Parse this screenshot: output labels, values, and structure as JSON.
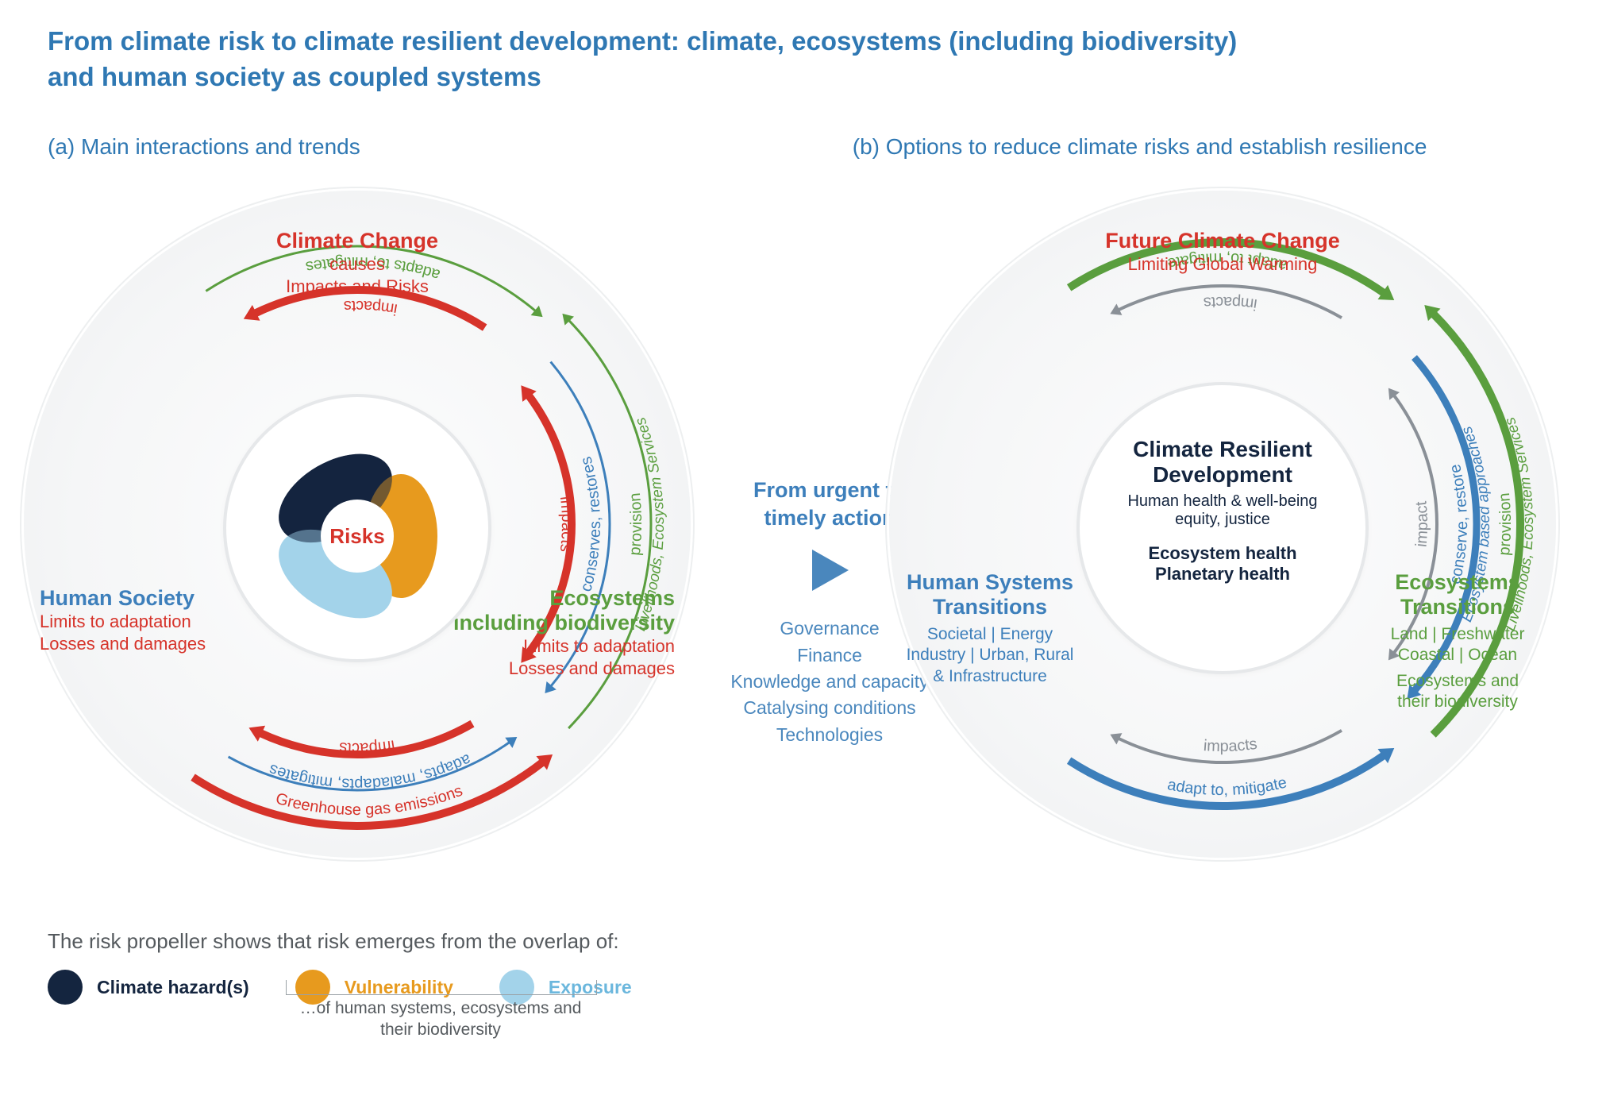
{
  "colors": {
    "title_blue": "#2f78b3",
    "red": "#d6332a",
    "green": "#5a9e3e",
    "blue": "#3d7fbb",
    "gray": "#8a9097",
    "text_gray": "#555a5e",
    "hazard": "#14253f",
    "vulnerability": "#e79a1e",
    "exposure": "#a3d3ea",
    "bg_circle": "#f2f3f4"
  },
  "typography": {
    "title_pt": 33,
    "subtitle_pt": 28,
    "node_title_pt": 27,
    "node_sub_pt": 22,
    "arc_label_pt": 20,
    "legend_pt": 23
  },
  "title_line1": "From climate risk to climate resilient development: climate, ecosystems (including biodiversity)",
  "title_line2": "and human society as coupled systems",
  "panel_a_title": "(a) Main interactions and trends",
  "panel_b_title": "(b) Options to reduce climate risks and establish resilience",
  "bridge": {
    "title": "From urgent to timely action",
    "items": [
      "Governance",
      "Finance",
      "Knowledge and capacity",
      "Catalysing conditions",
      "Technologies"
    ]
  },
  "panel_a": {
    "top": {
      "title": "Climate Change",
      "sub1": "causes",
      "sub2": "Impacts and Risks",
      "color": "red"
    },
    "left": {
      "title": "Human Society",
      "sub1": "Limits to adaptation",
      "sub2": "Losses and damages",
      "color": "blue",
      "sub_color": "red"
    },
    "right": {
      "title": "Ecosystems",
      "title2": "including biodiversity",
      "sub1": "Limits to adaptation",
      "sub2": "Losses and damages",
      "color": "green",
      "sub_color": "red"
    },
    "center_label": "Risks",
    "arcs": {
      "top_left": [
        {
          "label": "Greenhouse gas emissions",
          "color": "red",
          "width": 10,
          "r": 380,
          "a1": 142,
          "a2": 213,
          "reversed": true,
          "arrow": "start"
        },
        {
          "label": "adapts, maladapts, mitigates",
          "color": "blue",
          "width": 3,
          "r": 335,
          "a1": 145,
          "a2": 209,
          "arrow": "start"
        },
        {
          "label": "impacts",
          "color": "red",
          "width": 10,
          "r": 290,
          "a1": 150,
          "a2": 205,
          "arrow": "end"
        }
      ],
      "top_right": [
        {
          "label": "adapts to, mitigates",
          "color": "green",
          "width": 3,
          "r": 350,
          "a1": -33,
          "a2": 40,
          "reversed": true,
          "arrow": "end"
        },
        {
          "label": "impacts",
          "color": "red",
          "width": 10,
          "r": 295,
          "a1": -26,
          "a2": 33,
          "reversed": true,
          "arrow": "start"
        }
      ],
      "bottom": [
        {
          "label": "impacts",
          "color": "red",
          "width": 10,
          "r": 270,
          "a1": 53,
          "a2": 127,
          "reversed": true,
          "arrow": "both"
        },
        {
          "label": "conserves, restores",
          "color": "blue",
          "width": 3,
          "r": 318,
          "a1": 50,
          "a2": 130,
          "arrow": "end"
        },
        {
          "label": "provision",
          "label2": "Livelihoods, Ecosystem Services",
          "color": "green",
          "width": 3,
          "r": 370,
          "a1": 46,
          "a2": 134,
          "arrow": "start"
        }
      ]
    }
  },
  "panel_b": {
    "top": {
      "title": "Future Climate Change",
      "sub1": "Limiting Global Warming",
      "color": "red"
    },
    "left": {
      "title": "Human Systems",
      "title2": "Transitions",
      "sub1": "Societal | Energy",
      "sub2": "Industry | Urban, Rural",
      "sub3": "& Infrastructure",
      "color": "blue"
    },
    "right": {
      "title": "Ecosystems",
      "title2": "Transitions",
      "sub1": "Land | Freshwater",
      "sub2": "Coastal | Ocean",
      "sub3": "Ecosystems and",
      "sub4": "their biodiversity",
      "color": "green"
    },
    "center_title": "Climate Resilient Development",
    "center_sub1": "Human health & well-being",
    "center_sub2": "equity, justice",
    "center_bold1": "Ecosystem health",
    "center_bold2": "Planetary health",
    "arcs": {
      "top_left": [
        {
          "label": "adapt to, mitigate",
          "color": "blue",
          "width": 10,
          "r": 355,
          "a1": 145,
          "a2": 213,
          "reversed": true,
          "arrow": "start"
        },
        {
          "label": "impacts",
          "color": "gray",
          "width": 4,
          "r": 300,
          "a1": 150,
          "a2": 206,
          "reversed": true,
          "arrow": "end"
        }
      ],
      "top_right": [
        {
          "label": "adapt to, mitigate",
          "color": "green",
          "width": 10,
          "r": 355,
          "a1": -33,
          "a2": 35,
          "reversed": true,
          "arrow": "end"
        },
        {
          "label": "impacts",
          "color": "gray",
          "width": 4,
          "r": 300,
          "a1": -26,
          "a2": 30,
          "reversed": true,
          "arrow": "start"
        }
      ],
      "bottom": [
        {
          "label": "impact",
          "color": "gray",
          "width": 4,
          "r": 270,
          "a1": 53,
          "a2": 127,
          "arrow": "both"
        },
        {
          "label": "conserve, restore",
          "label2": "Ecosystem based approaches",
          "color": "blue",
          "width": 9,
          "r": 320,
          "a1": 49,
          "a2": 131,
          "arrow": "end"
        },
        {
          "label": "provision",
          "label2": "Livelihoods, Ecosystem Services",
          "color": "green",
          "width": 10,
          "r": 375,
          "a1": 45,
          "a2": 135,
          "arrow": "start"
        }
      ]
    }
  },
  "legend": {
    "intro": "The risk propeller shows that risk emerges from the overlap of:",
    "items": [
      {
        "label": "Climate hazard(s)",
        "color": "hazard",
        "text_color": "#14253f"
      },
      {
        "label": "Vulnerability",
        "color": "vulnerability",
        "text_color": "#e79a1e"
      },
      {
        "label": "Exposure",
        "color": "exposure",
        "text_color": "#6bb7dd"
      }
    ],
    "sub": "…of human systems, ecosystems and their biodiversity"
  }
}
